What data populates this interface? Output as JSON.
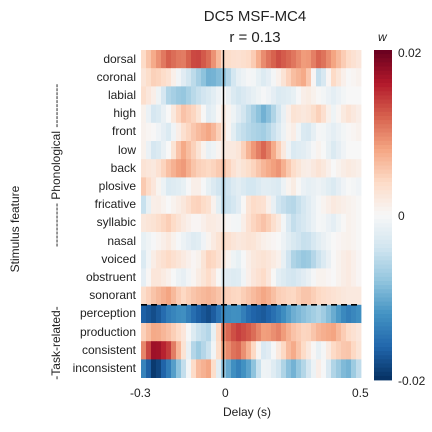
{
  "chart_data": {
    "type": "heatmap",
    "title": "DC5 MSF-MC4",
    "subtitle": "r = 0.13",
    "xlabel": "Delay (s)",
    "ylabel": "Stimulus feature",
    "x_ticks": [
      "-0.3",
      "0",
      "0.5"
    ],
    "x_range": [
      -0.3,
      0.5
    ],
    "colorbar": {
      "label": "w",
      "ticks": [
        "0.02",
        "0",
        "-0.02"
      ],
      "range": [
        -0.02,
        0.02
      ],
      "colormap": "RdBu_r"
    },
    "groups": [
      {
        "label": "----------- Phonological -----------",
        "rows": [
          "dorsal",
          "coronal",
          "labial",
          "high",
          "front",
          "low",
          "back",
          "plosive",
          "fricative",
          "syllabic",
          "nasal",
          "voiced",
          "obstruent",
          "sonorant"
        ]
      },
      {
        "label": "-Task-related-",
        "rows": [
          "perception",
          "production",
          "consistent",
          "inconsistent"
        ]
      }
    ],
    "rows": [
      "dorsal",
      "coronal",
      "labial",
      "high",
      "front",
      "low",
      "back",
      "plosive",
      "fricative",
      "syllabic",
      "nasal",
      "voiced",
      "obstruent",
      "sonorant",
      "perception",
      "production",
      "consistent",
      "inconsistent"
    ],
    "profiles": [
      [
        [
          -0.3,
          0.003
        ],
        [
          -0.25,
          0.008
        ],
        [
          -0.2,
          0.012
        ],
        [
          -0.15,
          0.01
        ],
        [
          -0.1,
          0.014
        ],
        [
          -0.05,
          0.011
        ],
        [
          0.0,
          0.004
        ],
        [
          0.05,
          0.003
        ],
        [
          0.1,
          0.004
        ],
        [
          0.15,
          0.01
        ],
        [
          0.2,
          0.013
        ],
        [
          0.25,
          0.011
        ],
        [
          0.3,
          0.008
        ],
        [
          0.35,
          0.012
        ],
        [
          0.4,
          0.008
        ],
        [
          0.45,
          0.004
        ],
        [
          0.5,
          0.002
        ]
      ],
      [
        [
          -0.3,
          0.002
        ],
        [
          -0.25,
          0.005
        ],
        [
          -0.2,
          0.003
        ],
        [
          -0.15,
          -0.002
        ],
        [
          -0.1,
          -0.006
        ],
        [
          -0.05,
          -0.01
        ],
        [
          0.0,
          -0.008
        ],
        [
          0.05,
          -0.002
        ],
        [
          0.1,
          0.0
        ],
        [
          0.15,
          -0.003
        ],
        [
          0.2,
          0.001
        ],
        [
          0.25,
          0.006
        ],
        [
          0.3,
          0.008
        ],
        [
          0.35,
          -0.006
        ],
        [
          0.4,
          0.004
        ],
        [
          0.45,
          0.0
        ],
        [
          0.5,
          0.001
        ]
      ],
      [
        [
          -0.3,
          0.004
        ],
        [
          -0.25,
          0.001
        ],
        [
          -0.2,
          -0.006
        ],
        [
          -0.15,
          -0.008
        ],
        [
          -0.1,
          -0.005
        ],
        [
          -0.05,
          -0.003
        ],
        [
          0.0,
          0.0
        ],
        [
          0.05,
          -0.004
        ],
        [
          0.1,
          -0.002
        ],
        [
          0.15,
          0.0
        ],
        [
          0.2,
          -0.003
        ],
        [
          0.25,
          -0.002
        ],
        [
          0.3,
          0.002
        ],
        [
          0.35,
          0.0
        ],
        [
          0.4,
          -0.002
        ],
        [
          0.45,
          0.0
        ],
        [
          0.5,
          0.0
        ]
      ],
      [
        [
          -0.3,
          0.002
        ],
        [
          -0.25,
          -0.004
        ],
        [
          -0.2,
          0.0
        ],
        [
          -0.15,
          0.006
        ],
        [
          -0.1,
          0.004
        ],
        [
          -0.05,
          -0.003
        ],
        [
          0.0,
          0.002
        ],
        [
          0.05,
          -0.002
        ],
        [
          0.1,
          -0.006
        ],
        [
          0.15,
          -0.01
        ],
        [
          0.2,
          -0.004
        ],
        [
          0.25,
          0.003
        ],
        [
          0.3,
          0.002
        ],
        [
          0.35,
          0.005
        ],
        [
          0.4,
          -0.001
        ],
        [
          0.45,
          0.003
        ],
        [
          0.5,
          0.001
        ]
      ],
      [
        [
          -0.3,
          0.001
        ],
        [
          -0.25,
          0.0
        ],
        [
          -0.2,
          -0.003
        ],
        [
          -0.15,
          0.003
        ],
        [
          -0.1,
          0.006
        ],
        [
          -0.05,
          0.008
        ],
        [
          0.0,
          0.003
        ],
        [
          0.05,
          -0.004
        ],
        [
          0.1,
          -0.006
        ],
        [
          0.15,
          -0.007
        ],
        [
          0.2,
          -0.003
        ],
        [
          0.25,
          0.002
        ],
        [
          0.3,
          -0.004
        ],
        [
          0.35,
          0.0
        ],
        [
          0.4,
          -0.002
        ],
        [
          0.45,
          0.0
        ],
        [
          0.5,
          0.001
        ]
      ],
      [
        [
          -0.3,
          0.002
        ],
        [
          -0.25,
          -0.004
        ],
        [
          -0.2,
          0.0
        ],
        [
          -0.15,
          0.008
        ],
        [
          -0.1,
          0.004
        ],
        [
          -0.05,
          -0.002
        ],
        [
          0.0,
          0.002
        ],
        [
          0.05,
          0.002
        ],
        [
          0.1,
          0.008
        ],
        [
          0.15,
          0.012
        ],
        [
          0.2,
          0.005
        ],
        [
          0.25,
          -0.003
        ],
        [
          0.3,
          -0.002
        ],
        [
          0.35,
          0.001
        ],
        [
          0.4,
          -0.003
        ],
        [
          0.45,
          0.0
        ],
        [
          0.5,
          0.0
        ]
      ],
      [
        [
          -0.3,
          0.003
        ],
        [
          -0.25,
          0.002
        ],
        [
          -0.2,
          0.006
        ],
        [
          -0.15,
          0.009
        ],
        [
          -0.1,
          0.005
        ],
        [
          -0.05,
          0.004
        ],
        [
          0.0,
          0.006
        ],
        [
          0.05,
          0.002
        ],
        [
          0.1,
          0.004
        ],
        [
          0.15,
          0.007
        ],
        [
          0.2,
          0.009
        ],
        [
          0.25,
          0.004
        ],
        [
          0.3,
          0.001
        ],
        [
          0.35,
          0.003
        ],
        [
          0.4,
          0.0
        ],
        [
          0.45,
          0.002
        ],
        [
          0.5,
          0.001
        ]
      ],
      [
        [
          -0.3,
          0.006
        ],
        [
          -0.25,
          0.002
        ],
        [
          -0.2,
          -0.003
        ],
        [
          -0.15,
          -0.002
        ],
        [
          -0.1,
          0.002
        ],
        [
          -0.05,
          -0.002
        ],
        [
          0.0,
          -0.005
        ],
        [
          0.05,
          -0.002
        ],
        [
          0.1,
          -0.004
        ],
        [
          0.15,
          -0.002
        ],
        [
          0.2,
          -0.003
        ],
        [
          0.25,
          0.002
        ],
        [
          0.3,
          -0.002
        ],
        [
          0.35,
          -0.001
        ],
        [
          0.4,
          -0.003
        ],
        [
          0.45,
          0.0
        ],
        [
          0.5,
          -0.001
        ]
      ],
      [
        [
          -0.3,
          -0.006
        ],
        [
          -0.25,
          0.002
        ],
        [
          -0.2,
          0.0
        ],
        [
          -0.15,
          0.002
        ],
        [
          -0.1,
          0.005
        ],
        [
          -0.05,
          0.003
        ],
        [
          0.0,
          -0.005
        ],
        [
          0.05,
          -0.003
        ],
        [
          0.1,
          0.004
        ],
        [
          0.15,
          0.003
        ],
        [
          0.2,
          -0.004
        ],
        [
          0.25,
          -0.006
        ],
        [
          0.3,
          -0.003
        ],
        [
          0.35,
          0.0
        ],
        [
          0.4,
          0.002
        ],
        [
          0.45,
          0.001
        ],
        [
          0.5,
          0.0
        ]
      ],
      [
        [
          -0.3,
          0.002
        ],
        [
          -0.25,
          0.003
        ],
        [
          -0.2,
          0.005
        ],
        [
          -0.15,
          0.002
        ],
        [
          -0.1,
          0.0
        ],
        [
          -0.05,
          0.002
        ],
        [
          0.0,
          0.001
        ],
        [
          0.05,
          -0.001
        ],
        [
          0.1,
          0.004
        ],
        [
          0.15,
          0.006
        ],
        [
          0.2,
          0.002
        ],
        [
          0.25,
          -0.005
        ],
        [
          0.3,
          -0.003
        ],
        [
          0.35,
          0.0
        ],
        [
          0.4,
          -0.002
        ],
        [
          0.45,
          0.001
        ],
        [
          0.5,
          0.0
        ]
      ],
      [
        [
          -0.3,
          -0.002
        ],
        [
          -0.25,
          0.0
        ],
        [
          -0.2,
          0.002
        ],
        [
          -0.15,
          -0.001
        ],
        [
          -0.1,
          -0.003
        ],
        [
          -0.05,
          0.001
        ],
        [
          0.0,
          0.004
        ],
        [
          0.05,
          0.002
        ],
        [
          0.1,
          0.003
        ],
        [
          0.15,
          0.001
        ],
        [
          0.2,
          0.0
        ],
        [
          0.25,
          -0.003
        ],
        [
          0.3,
          -0.005
        ],
        [
          0.35,
          -0.002
        ],
        [
          0.4,
          0.0
        ],
        [
          0.45,
          0.001
        ],
        [
          0.5,
          0.0
        ]
      ],
      [
        [
          -0.3,
          -0.004
        ],
        [
          -0.25,
          0.002
        ],
        [
          -0.2,
          0.004
        ],
        [
          -0.15,
          0.002
        ],
        [
          -0.1,
          0.0
        ],
        [
          -0.05,
          0.005
        ],
        [
          0.0,
          0.002
        ],
        [
          0.05,
          -0.002
        ],
        [
          0.1,
          0.002
        ],
        [
          0.15,
          0.003
        ],
        [
          0.2,
          0.001
        ],
        [
          0.25,
          -0.006
        ],
        [
          0.3,
          -0.008
        ],
        [
          0.35,
          -0.004
        ],
        [
          0.4,
          0.0
        ],
        [
          0.45,
          0.002
        ],
        [
          0.5,
          0.0
        ]
      ],
      [
        [
          -0.3,
          -0.003
        ],
        [
          -0.25,
          0.003
        ],
        [
          -0.2,
          0.001
        ],
        [
          -0.15,
          -0.002
        ],
        [
          -0.1,
          0.001
        ],
        [
          -0.05,
          0.004
        ],
        [
          0.0,
          -0.002
        ],
        [
          0.05,
          -0.003
        ],
        [
          0.1,
          0.002
        ],
        [
          0.15,
          0.004
        ],
        [
          0.2,
          -0.002
        ],
        [
          0.25,
          -0.004
        ],
        [
          0.3,
          -0.002
        ],
        [
          0.35,
          0.001
        ],
        [
          0.4,
          0.0
        ],
        [
          0.45,
          0.002
        ],
        [
          0.5,
          0.0
        ]
      ],
      [
        [
          -0.3,
          0.003
        ],
        [
          -0.25,
          0.006
        ],
        [
          -0.2,
          0.008
        ],
        [
          -0.15,
          0.004
        ],
        [
          -0.1,
          0.006
        ],
        [
          -0.05,
          0.007
        ],
        [
          0.0,
          0.005
        ],
        [
          0.05,
          0.004
        ],
        [
          0.1,
          0.006
        ],
        [
          0.15,
          0.008
        ],
        [
          0.2,
          0.005
        ],
        [
          0.25,
          0.004
        ],
        [
          0.3,
          0.006
        ],
        [
          0.35,
          0.004
        ],
        [
          0.4,
          0.003
        ],
        [
          0.45,
          0.002
        ],
        [
          0.5,
          0.002
        ]
      ],
      [
        [
          -0.3,
          -0.016
        ],
        [
          -0.25,
          -0.018
        ],
        [
          -0.2,
          -0.014
        ],
        [
          -0.15,
          -0.012
        ],
        [
          -0.1,
          -0.016
        ],
        [
          -0.05,
          -0.018
        ],
        [
          0.0,
          -0.013
        ],
        [
          0.05,
          -0.012
        ],
        [
          0.1,
          -0.016
        ],
        [
          0.15,
          -0.017
        ],
        [
          0.2,
          -0.014
        ],
        [
          0.25,
          -0.01
        ],
        [
          0.3,
          -0.008
        ],
        [
          0.35,
          -0.006
        ],
        [
          0.4,
          -0.01
        ],
        [
          0.45,
          -0.014
        ],
        [
          0.5,
          -0.012
        ]
      ],
      [
        [
          -0.3,
          0.004
        ],
        [
          -0.25,
          0.008
        ],
        [
          -0.2,
          0.006
        ],
        [
          -0.15,
          0.003
        ],
        [
          -0.1,
          -0.004
        ],
        [
          -0.05,
          -0.006
        ],
        [
          0.0,
          0.01
        ],
        [
          0.05,
          0.014
        ],
        [
          0.1,
          0.012
        ],
        [
          0.15,
          0.008
        ],
        [
          0.2,
          0.01
        ],
        [
          0.25,
          0.006
        ],
        [
          0.3,
          0.004
        ],
        [
          0.35,
          0.007
        ],
        [
          0.4,
          0.008
        ],
        [
          0.45,
          0.004
        ],
        [
          0.5,
          0.002
        ]
      ],
      [
        [
          -0.3,
          0.008
        ],
        [
          -0.25,
          0.018
        ],
        [
          -0.2,
          0.014
        ],
        [
          -0.15,
          0.004
        ],
        [
          -0.1,
          -0.008
        ],
        [
          -0.05,
          -0.004
        ],
        [
          0.0,
          0.008
        ],
        [
          0.05,
          0.012
        ],
        [
          0.1,
          0.006
        ],
        [
          0.15,
          -0.004
        ],
        [
          0.2,
          0.002
        ],
        [
          0.25,
          0.008
        ],
        [
          0.3,
          0.003
        ],
        [
          0.35,
          -0.002
        ],
        [
          0.4,
          0.004
        ],
        [
          0.45,
          0.006
        ],
        [
          0.5,
          0.002
        ]
      ],
      [
        [
          -0.3,
          -0.012
        ],
        [
          -0.25,
          -0.02
        ],
        [
          -0.2,
          -0.014
        ],
        [
          -0.15,
          -0.006
        ],
        [
          -0.1,
          0.006
        ],
        [
          -0.05,
          0.008
        ],
        [
          0.0,
          -0.008
        ],
        [
          0.05,
          -0.014
        ],
        [
          0.1,
          -0.01
        ],
        [
          0.15,
          0.0
        ],
        [
          0.2,
          -0.004
        ],
        [
          0.25,
          -0.01
        ],
        [
          0.3,
          -0.005
        ],
        [
          0.35,
          0.002
        ],
        [
          0.4,
          -0.006
        ],
        [
          0.45,
          -0.01
        ],
        [
          0.5,
          -0.004
        ]
      ]
    ]
  }
}
